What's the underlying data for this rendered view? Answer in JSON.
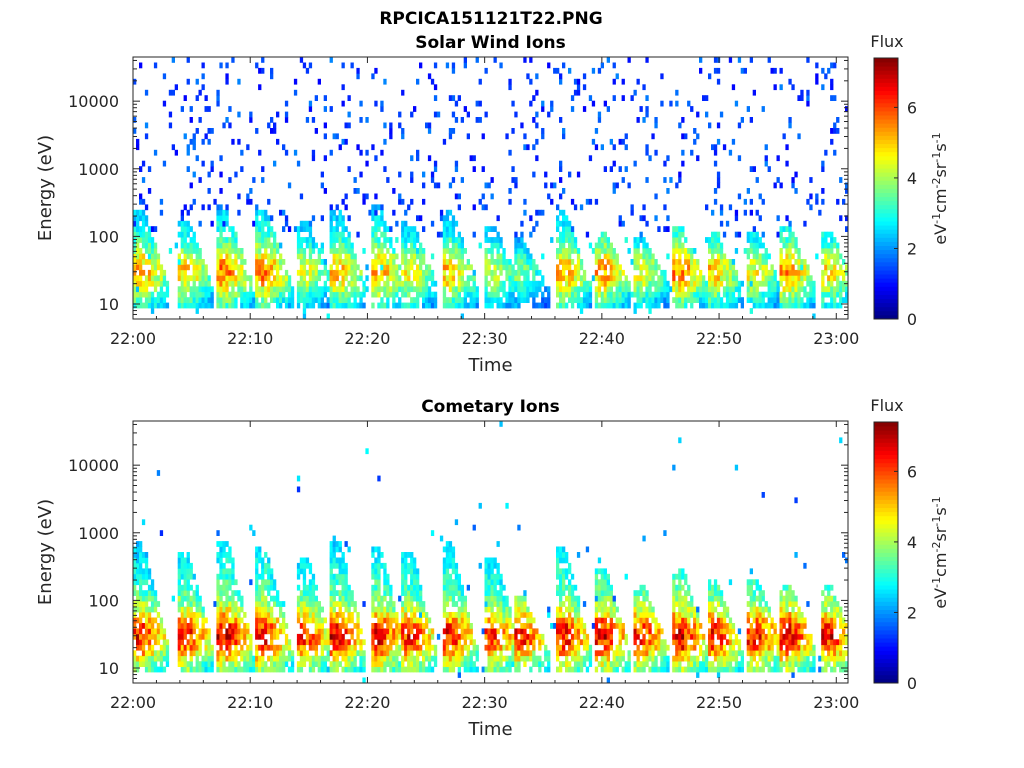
{
  "figure_title": "RPCICA151121T22.PNG",
  "chart_data": [
    {
      "type": "heatmap",
      "title": "Solar Wind Ions",
      "xlabel": "Time",
      "ylabel": "Energy (eV)",
      "xticks": [
        "22:00",
        "22:10",
        "22:20",
        "22:30",
        "22:40",
        "22:50",
        "23:00"
      ],
      "xrange_minutes": [
        0,
        61
      ],
      "yticks": [
        "10",
        "100",
        "1000",
        "10000"
      ],
      "ylim_eV": [
        6,
        45000
      ],
      "yscale": "log",
      "colorbar": {
        "label": "Flux",
        "units": "eV-1cm-2sr-1s-1",
        "ticks": [
          "0",
          "2",
          "4",
          "6"
        ],
        "range": [
          0,
          7.4
        ],
        "colormap": "jet"
      },
      "bursts": [
        {
          "t": 0.8,
          "peak": 5.5,
          "top": 250
        },
        {
          "t": 4.6,
          "peak": 5.2,
          "top": 180
        },
        {
          "t": 8.0,
          "peak": 5.8,
          "top": 260
        },
        {
          "t": 11.3,
          "peak": 5.8,
          "top": 230
        },
        {
          "t": 14.8,
          "peak": 4.6,
          "top": 160
        },
        {
          "t": 17.6,
          "peak": 5.4,
          "top": 250
        },
        {
          "t": 21.0,
          "peak": 5.6,
          "top": 280
        },
        {
          "t": 23.7,
          "peak": 4.9,
          "top": 180
        },
        {
          "t": 27.1,
          "peak": 5.3,
          "top": 260
        },
        {
          "t": 30.8,
          "peak": 4.5,
          "top": 140
        },
        {
          "t": 33.2,
          "peak": 3.8,
          "top": 90
        },
        {
          "t": 36.8,
          "peak": 5.5,
          "top": 230
        },
        {
          "t": 40.2,
          "peak": 5.6,
          "top": 120
        },
        {
          "t": 43.5,
          "peak": 4.7,
          "top": 100
        },
        {
          "t": 46.8,
          "peak": 5.8,
          "top": 130
        },
        {
          "t": 49.7,
          "peak": 5.3,
          "top": 120
        },
        {
          "t": 53.2,
          "peak": 4.8,
          "top": 110
        },
        {
          "t": 56.0,
          "peak": 5.6,
          "top": 140
        },
        {
          "t": 59.5,
          "peak": 5.0,
          "top": 110
        }
      ]
    },
    {
      "type": "heatmap",
      "title": "Cometary Ions",
      "xlabel": "Time",
      "ylabel": "Energy (eV)",
      "xticks": [
        "22:00",
        "22:10",
        "22:20",
        "22:30",
        "22:40",
        "22:50",
        "23:00"
      ],
      "xrange_minutes": [
        0,
        61
      ],
      "yticks": [
        "10",
        "100",
        "1000",
        "10000"
      ],
      "ylim_eV": [
        6,
        45000
      ],
      "yscale": "log",
      "colorbar": {
        "label": "Flux",
        "units": "eV-1cm-2sr-1s-1",
        "ticks": [
          "0",
          "2",
          "4",
          "6"
        ],
        "range": [
          0,
          7.4
        ],
        "colormap": "jet"
      },
      "bursts": [
        {
          "t": 0.8,
          "peak": 6.6,
          "top": 700
        },
        {
          "t": 4.6,
          "peak": 6.6,
          "top": 500
        },
        {
          "t": 8.0,
          "peak": 7.0,
          "top": 800
        },
        {
          "t": 11.3,
          "peak": 6.9,
          "top": 600
        },
        {
          "t": 14.8,
          "peak": 6.4,
          "top": 450
        },
        {
          "t": 17.6,
          "peak": 6.8,
          "top": 700
        },
        {
          "t": 21.0,
          "peak": 6.9,
          "top": 650
        },
        {
          "t": 23.7,
          "peak": 6.6,
          "top": 550
        },
        {
          "t": 27.1,
          "peak": 6.8,
          "top": 700
        },
        {
          "t": 30.8,
          "peak": 6.4,
          "top": 450
        },
        {
          "t": 33.2,
          "peak": 6.6,
          "top": 120
        },
        {
          "t": 36.8,
          "peak": 6.9,
          "top": 600
        },
        {
          "t": 40.2,
          "peak": 6.9,
          "top": 300
        },
        {
          "t": 43.5,
          "peak": 6.6,
          "top": 160
        },
        {
          "t": 46.8,
          "peak": 7.0,
          "top": 300
        },
        {
          "t": 49.7,
          "peak": 6.8,
          "top": 200
        },
        {
          "t": 53.2,
          "peak": 6.7,
          "top": 220
        },
        {
          "t": 56.0,
          "peak": 6.9,
          "top": 180
        },
        {
          "t": 59.5,
          "peak": 6.7,
          "top": 160
        }
      ]
    }
  ]
}
